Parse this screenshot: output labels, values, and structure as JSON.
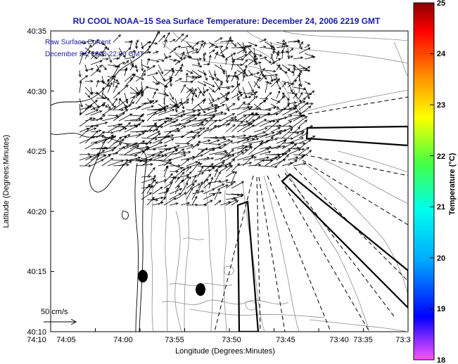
{
  "title": "RU COOL  NOAA−15  Sea Surface Temperature:  December 24, 2006 2219 GMT",
  "legend": {
    "line1": "Raw Surface Current",
    "line2": "December 24, 2006 22:00 GMT"
  },
  "scale_label": "50 cm/s",
  "axes": {
    "xlabel": "Longitude (Degrees:Minutes)",
    "ylabel": "Latitude (Degrees:Minutes)",
    "xticks": [
      "74:10",
      "74:05",
      "74:00",
      "73:55",
      "73:50",
      "73:45",
      "73:40",
      "73:35",
      "73:3"
    ],
    "yticks": [
      "40:35",
      "40:30",
      "40:25",
      "40:20",
      "40:15",
      "40:10"
    ]
  },
  "colorbar": {
    "label": "Temperature (°C)",
    "ticks": [
      "25",
      "24",
      "23",
      "22",
      "21",
      "20",
      "19",
      "18"
    ],
    "min": 18,
    "max": 25,
    "colors": [
      "#ff55ff",
      "#0000ff",
      "#00aaff",
      "#00ffee",
      "#44ff44",
      "#ffff00",
      "#ff8800",
      "#ff0000",
      "#8a0000"
    ]
  },
  "map": {
    "background_color": "#ffffff",
    "land_outline_color": "#000000",
    "contour_color": "#888888",
    "marker_color": "#000000"
  }
}
